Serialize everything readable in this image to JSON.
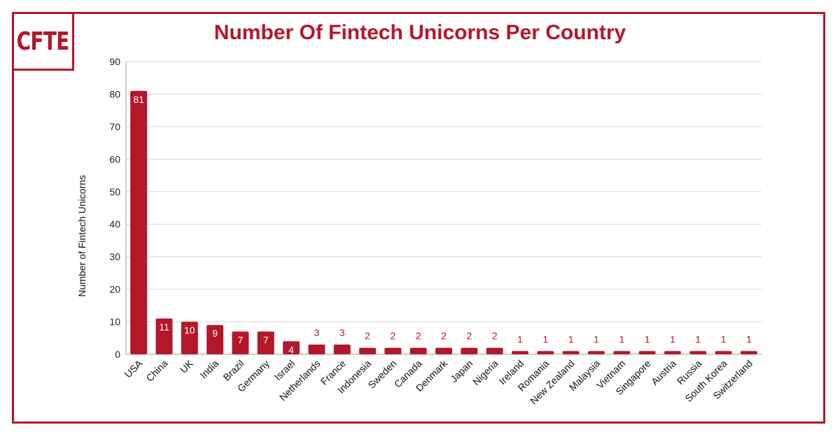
{
  "logo": {
    "text": "CFTE"
  },
  "chart_data": {
    "type": "bar",
    "title": "Number Of Fintech Unicorns Per Country",
    "xlabel": "",
    "ylabel": "Number of Fintech Unicorns",
    "ylim": [
      0,
      90
    ],
    "yticks": [
      0,
      10,
      20,
      30,
      40,
      50,
      60,
      70,
      80,
      90
    ],
    "grid": true,
    "categories": [
      "USA",
      "China",
      "UK",
      "India",
      "Brazil",
      "Germany",
      "Israel",
      "Netherlands",
      "France",
      "Indonesia",
      "Sweden",
      "Canada",
      "Denmark",
      "Japan",
      "Nigeria",
      "Ireland",
      "Romania",
      "New Zealand",
      "Malaysia",
      "Vietnam",
      "Singapore",
      "Austria",
      "Russia",
      "South Korea",
      "Switzerland"
    ],
    "values": [
      81,
      11,
      10,
      9,
      7,
      7,
      4,
      3,
      3,
      2,
      2,
      2,
      2,
      2,
      2,
      1,
      1,
      1,
      1,
      1,
      1,
      1,
      1,
      1,
      1
    ],
    "colors": {
      "bar": "#b5172a",
      "accent": "#b5172a",
      "grid": "#d9d9d9"
    }
  }
}
